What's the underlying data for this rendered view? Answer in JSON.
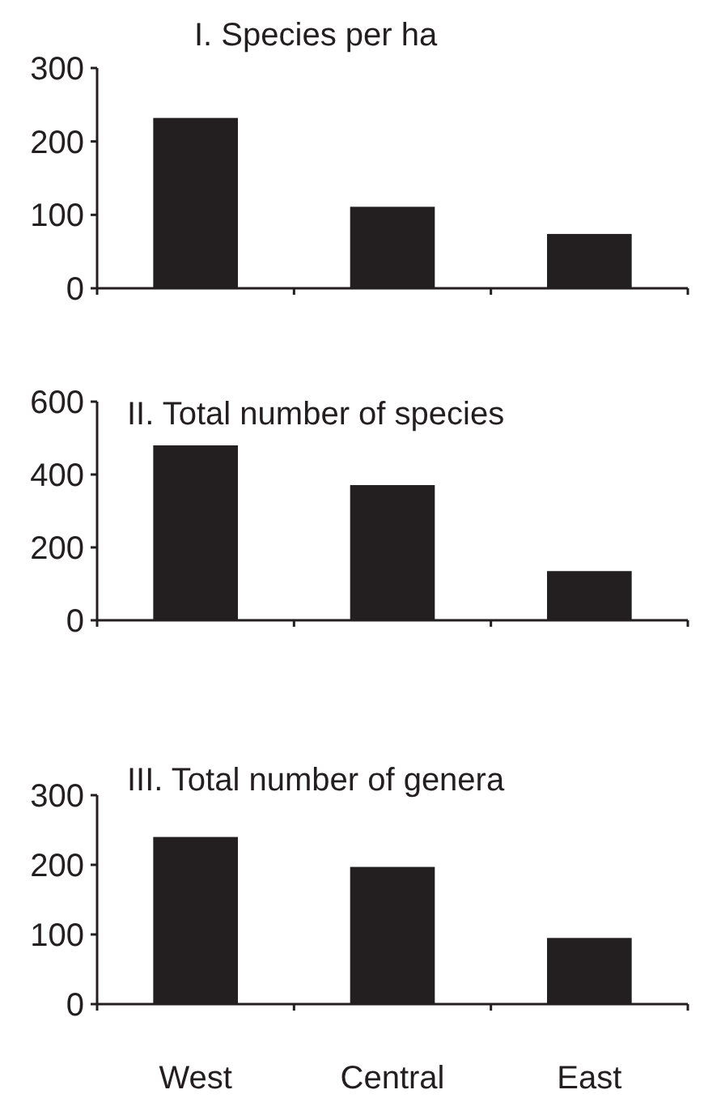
{
  "chart_data": [
    {
      "type": "bar",
      "title": "I. Species per ha",
      "categories": [
        null,
        null,
        null
      ],
      "values": [
        232,
        111,
        74
      ],
      "color": "#231f20",
      "ylim": [
        0,
        300
      ],
      "yticks": [
        0,
        100,
        200,
        300
      ],
      "tick_labels": "y"
    },
    {
      "type": "bar",
      "title": "II. Total  number of species",
      "categories": [
        null,
        null,
        null
      ],
      "values": [
        480,
        371,
        135
      ],
      "color": "#231f20",
      "ylim": [
        0,
        600
      ],
      "yticks": [
        0,
        200,
        400,
        600
      ],
      "tick_labels": "y"
    },
    {
      "type": "bar",
      "title": "III. Total  number of genera",
      "categories": [
        "West",
        "Central",
        "East"
      ],
      "values": [
        240,
        197,
        95
      ],
      "color": "#231f20",
      "ylim": [
        0,
        300
      ],
      "yticks": [
        0,
        100,
        200,
        300
      ]
    }
  ]
}
